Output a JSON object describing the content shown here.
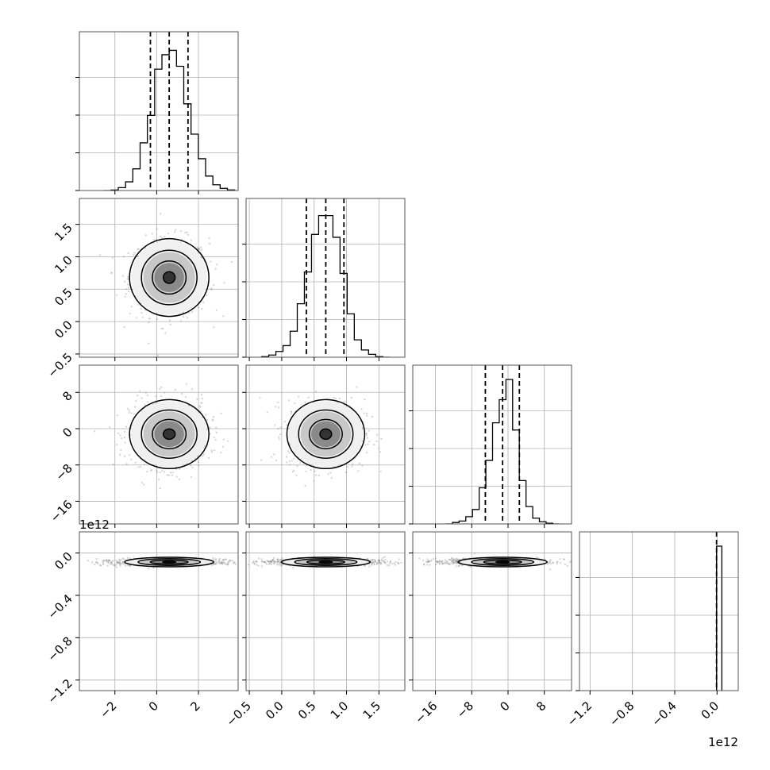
{
  "chart_data": {
    "type": "corner",
    "n_params": 4,
    "colors": {
      "line": "#000000",
      "points": "#808080",
      "grid": "#b0b0b0"
    },
    "parameters": [
      {
        "label": "",
        "range": [
          -3.7,
          3.9
        ],
        "ticks": [
          -2,
          0,
          2
        ],
        "tick_labels": [
          "−2",
          "0",
          "2"
        ],
        "mean": 0.6,
        "sd": 0.95,
        "quantiles": [
          -0.3,
          0.6,
          1.5
        ],
        "hist_ylim": [
          0,
          1.0
        ]
      },
      {
        "label": "",
        "range": [
          -0.55,
          1.9
        ],
        "ticks": [
          -0.5,
          0.0,
          0.5,
          1.0,
          1.5
        ],
        "tick_labels": [
          "−0.5",
          "0.0",
          "0.5",
          "1.0",
          "1.5"
        ],
        "mean": 0.68,
        "sd": 0.3,
        "quantiles": [
          0.38,
          0.68,
          0.96
        ],
        "hist_ylim": [
          0,
          1.0
        ]
      },
      {
        "label": "",
        "range": [
          -21,
          14
        ],
        "ticks": [
          -16,
          -8,
          0,
          8
        ],
        "tick_labels": [
          "−16",
          "−8",
          "0",
          "8"
        ],
        "mean": -1.2,
        "sd": 3.8,
        "quantiles": [
          -5,
          -1.2,
          2.5
        ],
        "hist_ylim": [
          0,
          1.0
        ]
      },
      {
        "label": "",
        "range": [
          -1300000000000.0,
          200000000000.0
        ],
        "ticks": [
          -1200000000000.0,
          -800000000000.0,
          -400000000000.0,
          0.0
        ],
        "tick_labels": [
          "−1.2",
          "−0.8",
          "−0.4",
          "0.0"
        ],
        "offset_text": "1e12",
        "mean": 0.0,
        "sd": 0.0,
        "quantiles": [
          -5000000000.0,
          0.0,
          30000000000.0
        ],
        "hist_ylim": [
          0,
          1.0
        ]
      }
    ],
    "offset_labels": {
      "row4_y": "1e12",
      "col4_x": "1e12"
    },
    "marginal_hist": {
      "p1": [
        0.0,
        0.003,
        0.02,
        0.06,
        0.15,
        0.33,
        0.52,
        0.84,
        0.94,
        0.97,
        0.86,
        0.6,
        0.39,
        0.22,
        0.1,
        0.04,
        0.015,
        0.004
      ],
      "p2": [
        0.004,
        0.015,
        0.04,
        0.08,
        0.18,
        0.37,
        0.59,
        0.85,
        0.98,
        0.98,
        0.83,
        0.58,
        0.3,
        0.12,
        0.05,
        0.02,
        0.004,
        0.0
      ],
      "p3": [
        0.0,
        0.01,
        0.02,
        0.05,
        0.1,
        0.25,
        0.44,
        0.7,
        0.86,
        1.0,
        0.65,
        0.3,
        0.12,
        0.04,
        0.015,
        0.005,
        0.0
      ],
      "p4": [
        1.0
      ]
    }
  }
}
